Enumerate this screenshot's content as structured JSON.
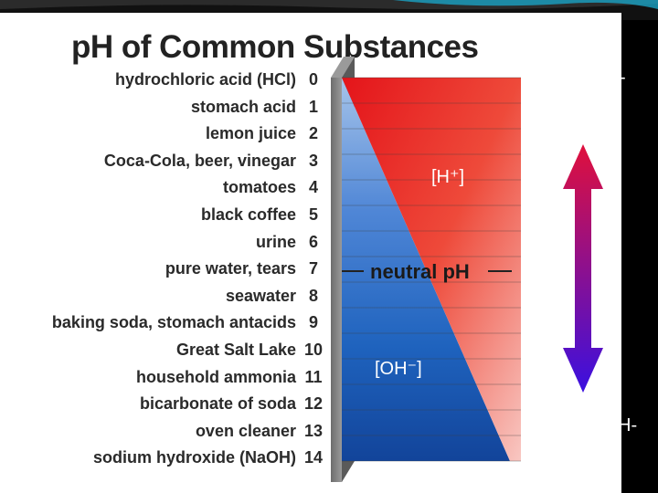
{
  "title": "pH of Common Substances",
  "substances": [
    {
      "ph": "0",
      "name": "hydrochloric acid (HCl)"
    },
    {
      "ph": "1",
      "name": "stomach acid"
    },
    {
      "ph": "2",
      "name": "lemon juice"
    },
    {
      "ph": "3",
      "name": "Coca-Cola, beer, vinegar"
    },
    {
      "ph": "4",
      "name": "tomatoes"
    },
    {
      "ph": "5",
      "name": "black coffee"
    },
    {
      "ph": "6",
      "name": "urine"
    },
    {
      "ph": "7",
      "name": "pure water, tears"
    },
    {
      "ph": "8",
      "name": "seawater"
    },
    {
      "ph": "9",
      "name": "baking soda, stomach antacids"
    },
    {
      "ph": "10",
      "name": "Great Salt Lake"
    },
    {
      "ph": "11",
      "name": "household ammonia"
    },
    {
      "ph": "12",
      "name": "bicarbonate of soda"
    },
    {
      "ph": "13",
      "name": "oven cleaner"
    },
    {
      "ph": "14",
      "name": "sodium hydroxide (NaOH)"
    }
  ],
  "diagram": {
    "h_ion_label": "[H⁺]",
    "oh_ion_label": "[OH⁻]",
    "neutral_label": "neutral pH"
  },
  "colors": {
    "acid_red": "#e8201e",
    "base_blue": "#1f5fb7",
    "arrow_top": "#e0103c",
    "arrow_bottom": "#3a10e0"
  },
  "side_marks": {
    "top": "-",
    "bottom": "H-"
  }
}
